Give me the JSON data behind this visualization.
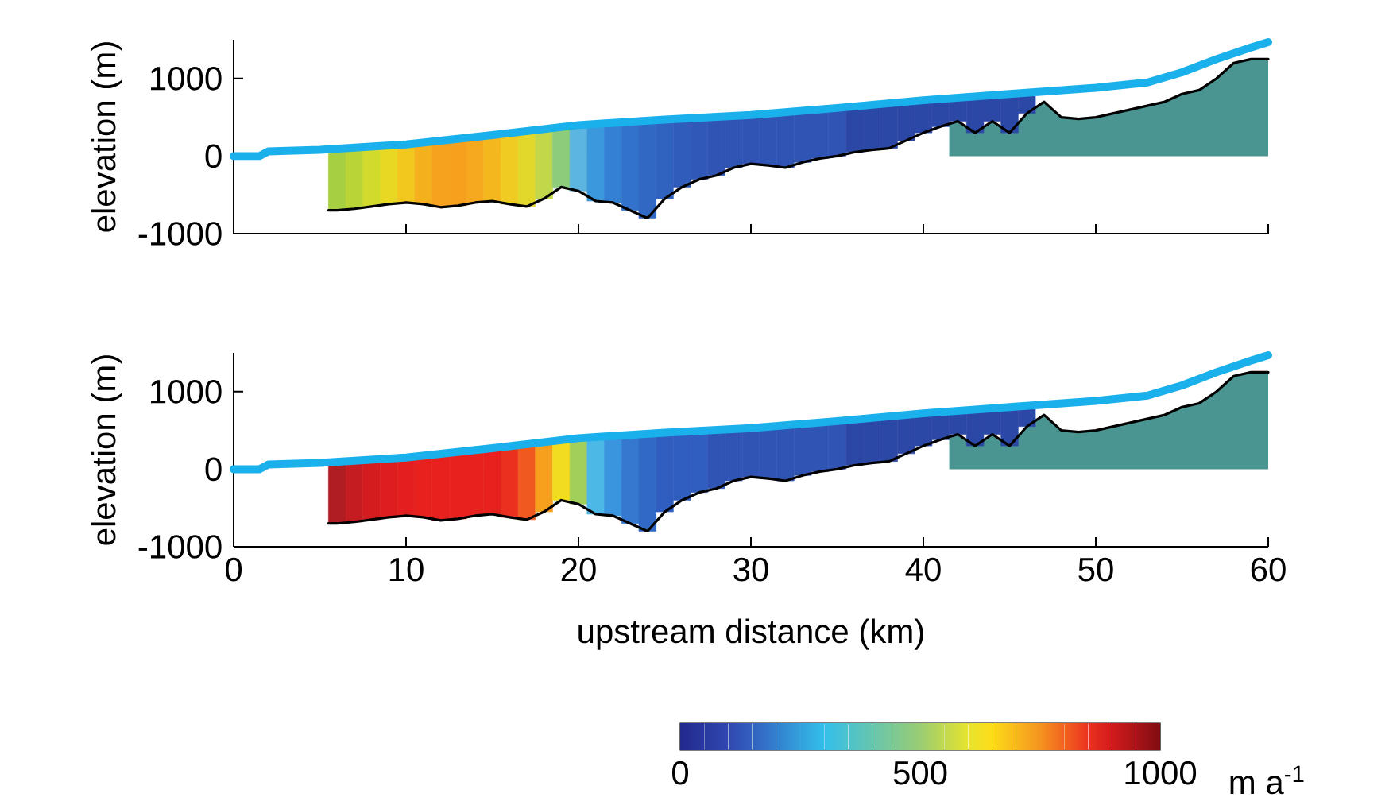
{
  "chart_data": [
    {
      "type": "line",
      "ylabel": "elevation (m)",
      "xlim": [
        0,
        60
      ],
      "ylim": [
        -1000,
        1500
      ],
      "xticks": [
        0,
        10,
        20,
        30,
        40,
        50,
        60
      ],
      "yticks": [
        -1000,
        0,
        1000
      ],
      "tick_labels": "y",
      "grid": false,
      "marker": "none",
      "series": [
        {
          "type": "area",
          "color": "#e2f0ef",
          "x": [
            5.5,
            6,
            7,
            8,
            9,
            10,
            11,
            12,
            13,
            14,
            15,
            16,
            17,
            18,
            19,
            20,
            21,
            22,
            23
          ],
          "values": [
            -700,
            -700,
            -680,
            -650,
            -620,
            -600,
            -620,
            -660,
            -640,
            -600,
            -580,
            -620,
            -650,
            -550,
            -400,
            -450,
            -580,
            -600,
            -700
          ]
        },
        {
          "type": "area",
          "color": "#4a9591",
          "x": [
            41.5,
            42,
            43,
            44,
            45,
            46,
            47,
            48,
            49,
            50,
            52,
            54,
            55,
            56,
            57,
            58,
            59,
            60
          ],
          "values": [
            400,
            450,
            300,
            450,
            300,
            550,
            700,
            500,
            480,
            500,
            600,
            700,
            800,
            850,
            1000,
            1200,
            1250,
            1250
          ]
        },
        {
          "type": "bar",
          "x": [
            6,
            7,
            8,
            9,
            10,
            11,
            12,
            13,
            14,
            15,
            16,
            17,
            18,
            19,
            20,
            21,
            22,
            23,
            24,
            25,
            26,
            27,
            28,
            29,
            30,
            31,
            32,
            33,
            34,
            35,
            36,
            37,
            38,
            39,
            40,
            41,
            42,
            43,
            44,
            45,
            46
          ],
          "base": [
            -700,
            -680,
            -650,
            -620,
            -600,
            -620,
            -660,
            -640,
            -600,
            -580,
            -620,
            -650,
            -550,
            -400,
            -450,
            -580,
            -600,
            -700,
            -800,
            -550,
            -400,
            -300,
            -250,
            -150,
            -100,
            -120,
            -150,
            -80,
            -30,
            0,
            50,
            80,
            100,
            200,
            300,
            380,
            450,
            300,
            450,
            300,
            550
          ],
          "values": [
            800,
            790,
            770,
            760,
            750,
            800,
            860,
            860,
            850,
            850,
            920,
            970,
            900,
            780,
            850,
            1000,
            1030,
            1140,
            1260,
            1020,
            880,
            800,
            760,
            670,
            630,
            670,
            720,
            660,
            630,
            620,
            590,
            580,
            580,
            500,
            420,
            360,
            300,
            460,
            340,
            500,
            260
          ],
          "colors": [
            "#a6d042",
            "#b8d436",
            "#d2da2c",
            "#e8d824",
            "#f2c81e",
            "#f5b01e",
            "#f6a21e",
            "#f6a01e",
            "#f6a81e",
            "#f4b81e",
            "#f0cc22",
            "#e2d82c",
            "#c2d84a",
            "#8ccc7a",
            "#5cb4e0",
            "#3c98dc",
            "#3480d4",
            "#3272cc",
            "#3068c4",
            "#3062c0",
            "#305cbc",
            "#3058b8",
            "#2f54b4",
            "#2f54b4",
            "#2f54b4",
            "#2f54b4",
            "#2f54b4",
            "#2f54b4",
            "#2f54b4",
            "#2f54b4",
            "#2c48a6",
            "#2c48a6",
            "#2c48a6",
            "#2c48a6",
            "#2c48a6",
            "#2c48a6",
            "#2c48a6",
            "#2c48a6",
            "#2c48a6",
            "#2c48a6",
            "#2c48a6"
          ]
        },
        {
          "color": "#000000",
          "x": [
            5.5,
            6,
            7,
            8,
            9,
            10,
            11,
            12,
            13,
            14,
            15,
            16,
            17,
            18,
            19,
            20,
            21,
            22,
            23,
            24,
            25,
            26,
            27,
            28,
            29,
            30,
            31,
            32,
            33,
            34,
            35,
            36,
            37,
            38,
            39,
            40,
            41,
            42,
            43,
            44,
            45,
            46,
            47,
            48,
            49,
            50,
            52,
            54,
            55,
            56,
            57,
            58,
            59,
            60
          ],
          "values": [
            -700,
            -700,
            -680,
            -650,
            -620,
            -600,
            -620,
            -660,
            -640,
            -600,
            -580,
            -620,
            -650,
            -550,
            -400,
            -450,
            -580,
            -600,
            -700,
            -800,
            -550,
            -400,
            -300,
            -250,
            -150,
            -100,
            -120,
            -150,
            -80,
            -30,
            0,
            50,
            80,
            100,
            200,
            300,
            380,
            450,
            300,
            450,
            300,
            550,
            700,
            500,
            480,
            500,
            600,
            700,
            800,
            850,
            1000,
            1200,
            1250,
            1250
          ]
        },
        {
          "color": "#1ab0ec",
          "x": [
            0,
            1.5,
            2,
            5,
            10,
            15,
            20,
            25,
            30,
            35,
            40,
            45,
            50,
            53,
            55,
            57,
            59,
            60
          ],
          "values": [
            0,
            0,
            60,
            80,
            150,
            270,
            400,
            470,
            530,
            620,
            720,
            800,
            880,
            950,
            1080,
            1250,
            1400,
            1470
          ]
        }
      ]
    },
    {
      "type": "line",
      "ylabel": "elevation (m)",
      "xlabel": "upstream distance (km)",
      "xlim": [
        0,
        60
      ],
      "ylim": [
        -1000,
        1500
      ],
      "xticks": [
        0,
        10,
        20,
        30,
        40,
        50,
        60
      ],
      "yticks": [
        -1000,
        0,
        1000
      ],
      "grid": false,
      "marker": "none",
      "clabel": "m a$^{-1}$",
      "clim": [
        0,
        1000
      ],
      "cticks": [
        0,
        500,
        1000
      ],
      "series": [
        {
          "type": "area",
          "color": "#e2f0ef",
          "x": [
            5.5,
            6,
            7,
            8,
            9,
            10,
            11,
            12,
            13,
            14,
            15,
            16,
            17,
            18,
            19,
            20,
            21,
            22,
            23
          ],
          "values": [
            -700,
            -700,
            -680,
            -650,
            -620,
            -600,
            -620,
            -660,
            -640,
            -600,
            -580,
            -620,
            -650,
            -550,
            -400,
            -450,
            -580,
            -600,
            -700
          ]
        },
        {
          "type": "area",
          "color": "#4a9591",
          "x": [
            41.5,
            42,
            43,
            44,
            45,
            46,
            47,
            48,
            49,
            50,
            52,
            54,
            55,
            56,
            57,
            58,
            59,
            60
          ],
          "values": [
            400,
            450,
            300,
            450,
            300,
            550,
            700,
            500,
            480,
            500,
            600,
            700,
            800,
            850,
            1000,
            1200,
            1250,
            1250
          ]
        },
        {
          "type": "bar",
          "x": [
            6,
            7,
            8,
            9,
            10,
            11,
            12,
            13,
            14,
            15,
            16,
            17,
            18,
            19,
            20,
            21,
            22,
            23,
            24,
            25,
            26,
            27,
            28,
            29,
            30,
            31,
            32,
            33,
            34,
            35,
            36,
            37,
            38,
            39,
            40,
            41,
            42,
            43,
            44,
            45,
            46
          ],
          "base": [
            -700,
            -680,
            -650,
            -620,
            -600,
            -620,
            -660,
            -640,
            -600,
            -580,
            -620,
            -650,
            -550,
            -400,
            -450,
            -580,
            -600,
            -700,
            -800,
            -550,
            -400,
            -300,
            -250,
            -150,
            -100,
            -120,
            -150,
            -80,
            -30,
            0,
            50,
            80,
            100,
            200,
            300,
            380,
            450,
            300,
            450,
            300,
            550
          ],
          "values": [
            800,
            790,
            770,
            760,
            750,
            800,
            860,
            860,
            850,
            850,
            920,
            970,
            900,
            780,
            850,
            1000,
            1030,
            1140,
            1260,
            1020,
            880,
            800,
            760,
            670,
            630,
            670,
            720,
            660,
            630,
            620,
            590,
            580,
            580,
            500,
            420,
            360,
            300,
            460,
            340,
            500,
            260
          ],
          "colors": [
            "#b01e22",
            "#c41c20",
            "#d41c1e",
            "#de1e1e",
            "#e41e1e",
            "#e8201e",
            "#e8201e",
            "#e8201e",
            "#e8201e",
            "#e8201e",
            "#ec3020",
            "#f05a20",
            "#f6a01e",
            "#f2dc22",
            "#a0d05a",
            "#4cb8e6",
            "#3a94de",
            "#3478d0",
            "#306ac6",
            "#305ec0",
            "#305ec0",
            "#305ec0",
            "#2f54b4",
            "#2f54b4",
            "#2f54b4",
            "#2f54b4",
            "#2f54b4",
            "#2f54b4",
            "#2f54b4",
            "#2f54b4",
            "#2c48a6",
            "#2c48a6",
            "#2c48a6",
            "#2c48a6",
            "#2c48a6",
            "#2c48a6",
            "#2c48a6",
            "#2c48a6",
            "#2c48a6",
            "#2c48a6",
            "#2c48a6"
          ]
        },
        {
          "color": "#000000",
          "x": [
            5.5,
            6,
            7,
            8,
            9,
            10,
            11,
            12,
            13,
            14,
            15,
            16,
            17,
            18,
            19,
            20,
            21,
            22,
            23,
            24,
            25,
            26,
            27,
            28,
            29,
            30,
            31,
            32,
            33,
            34,
            35,
            36,
            37,
            38,
            39,
            40,
            41,
            42,
            43,
            44,
            45,
            46,
            47,
            48,
            49,
            50,
            52,
            54,
            55,
            56,
            57,
            58,
            59,
            60
          ],
          "values": [
            -700,
            -700,
            -680,
            -650,
            -620,
            -600,
            -620,
            -660,
            -640,
            -600,
            -580,
            -620,
            -650,
            -550,
            -400,
            -450,
            -580,
            -600,
            -700,
            -800,
            -550,
            -400,
            -300,
            -250,
            -150,
            -100,
            -120,
            -150,
            -80,
            -30,
            0,
            50,
            80,
            100,
            200,
            300,
            380,
            450,
            300,
            450,
            300,
            550,
            700,
            500,
            480,
            500,
            600,
            700,
            800,
            850,
            1000,
            1200,
            1250,
            1250
          ]
        },
        {
          "color": "#1ab0ec",
          "x": [
            0,
            1.5,
            2,
            5,
            10,
            15,
            20,
            25,
            30,
            35,
            40,
            45,
            50,
            53,
            55,
            57,
            59,
            60
          ],
          "values": [
            0,
            0,
            60,
            80,
            150,
            270,
            400,
            470,
            530,
            620,
            720,
            800,
            880,
            950,
            1080,
            1250,
            1400,
            1470
          ]
        }
      ]
    }
  ]
}
